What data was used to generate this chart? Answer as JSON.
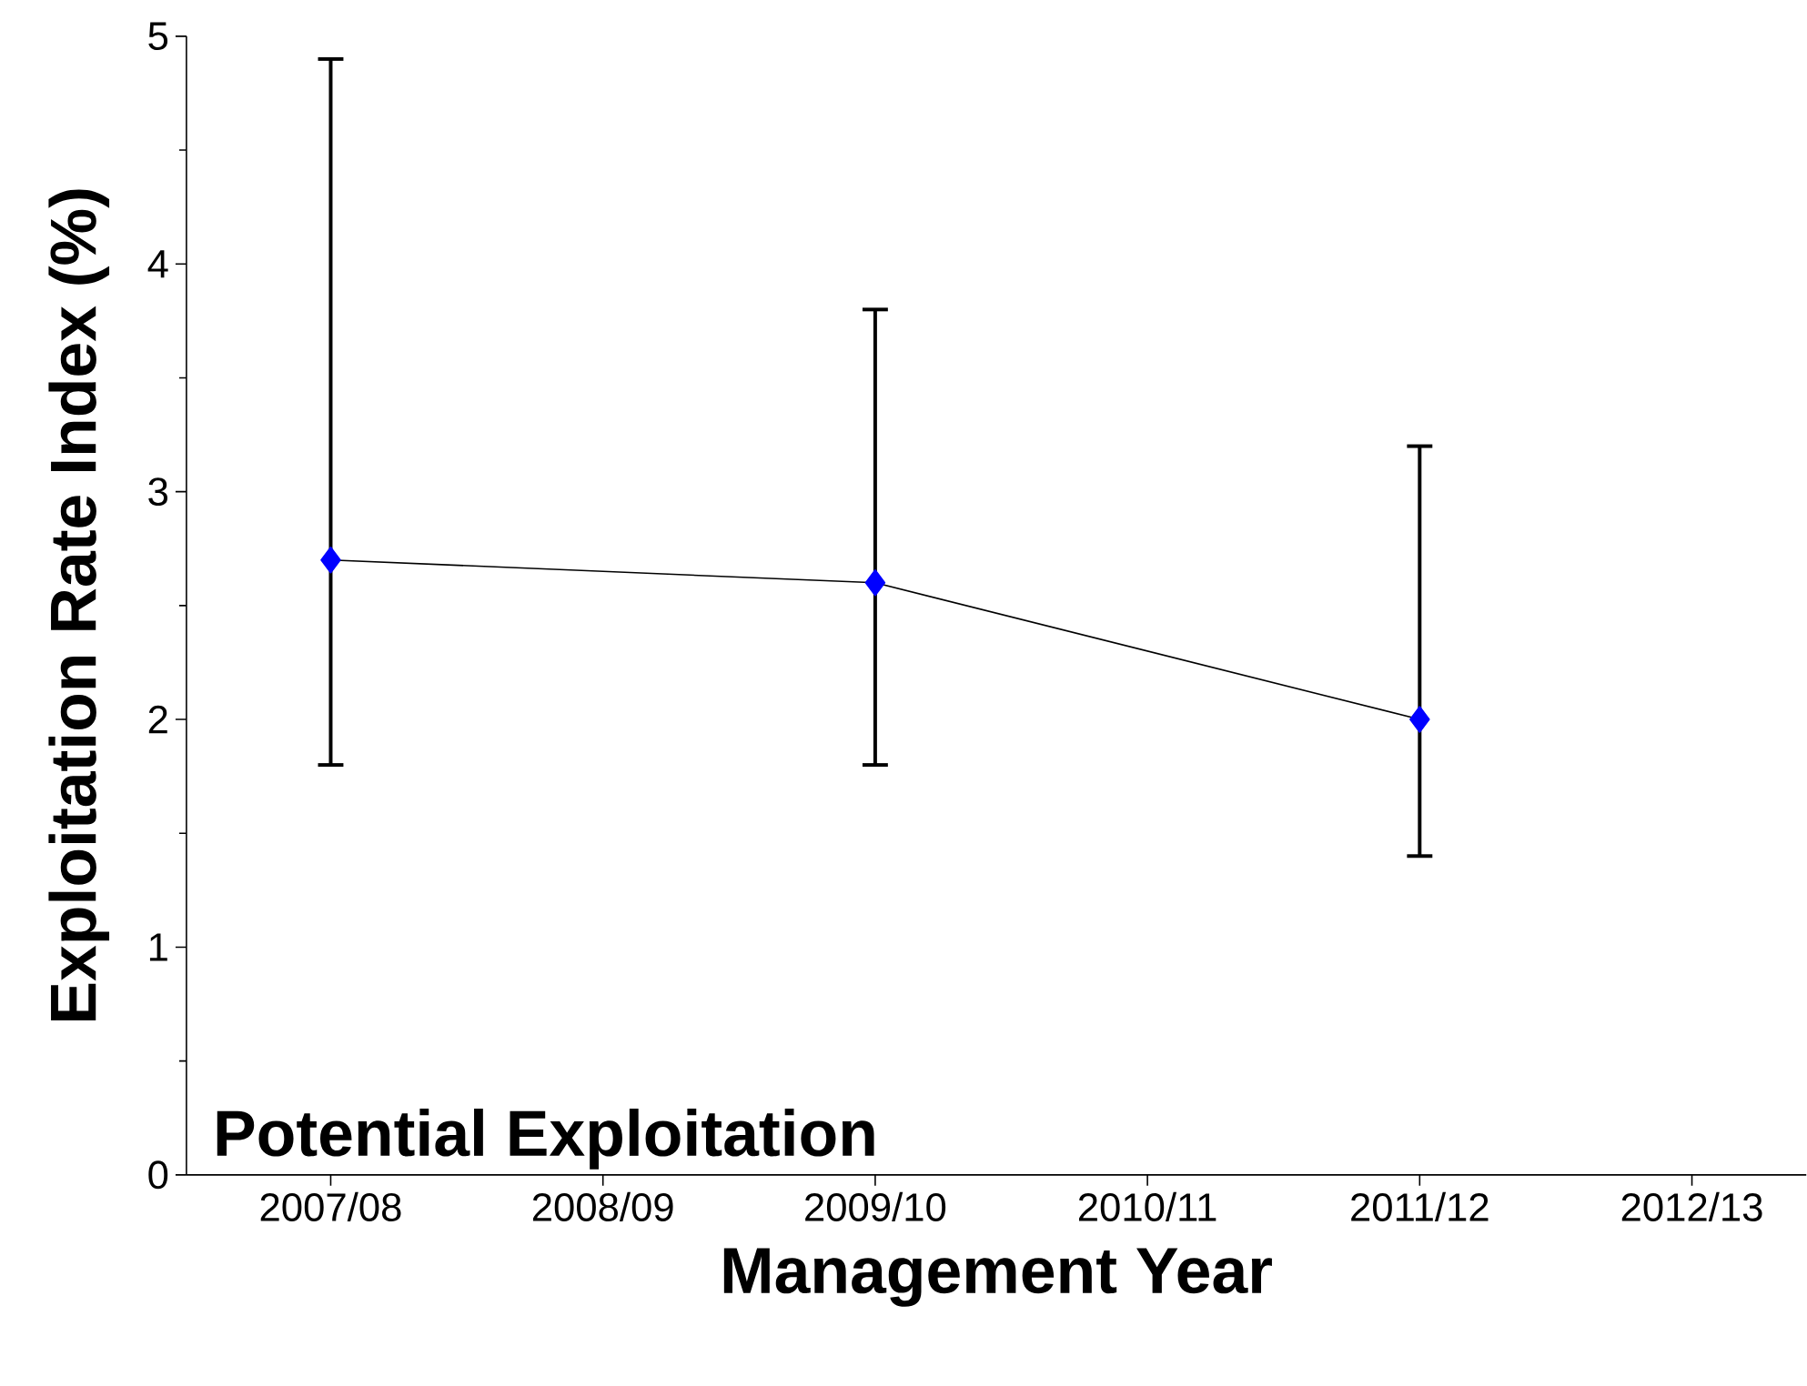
{
  "chart_data": {
    "type": "line",
    "xlabel": "Management Year",
    "ylabel": "Exploitation Rate Index (%)",
    "categories": [
      "2007/08",
      "2008/09",
      "2009/10",
      "2010/11",
      "2011/12",
      "2012/13"
    ],
    "values": [
      2.7,
      null,
      2.6,
      null,
      2.0,
      null
    ],
    "errors": [
      [
        1.8,
        4.9
      ],
      null,
      [
        1.8,
        3.8
      ],
      null,
      [
        1.4,
        3.2
      ],
      null
    ],
    "color": "#0000ff",
    "marker": "diamond",
    "line_style": "solid",
    "ylim": [
      0,
      5
    ],
    "yticks": [
      0,
      1,
      2,
      3,
      4,
      5
    ],
    "grid": false,
    "annotations": [
      "Potential Exploitation"
    ]
  }
}
